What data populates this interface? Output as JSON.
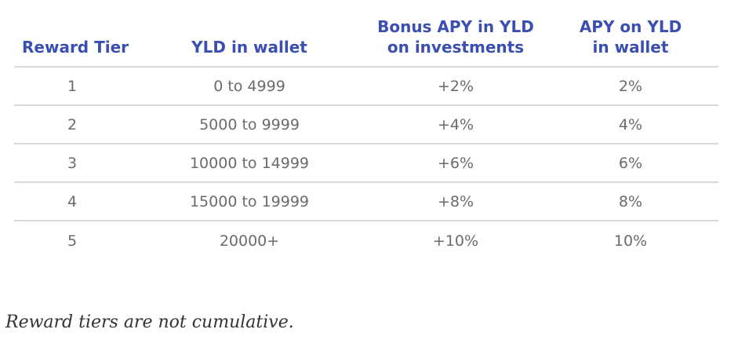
{
  "table": {
    "headers": [
      [
        "Reward Tier"
      ],
      [
        "YLD in wallet"
      ],
      [
        "Bonus APY in YLD",
        "on investments"
      ],
      [
        "APY on YLD",
        "in wallet"
      ]
    ],
    "rows": [
      [
        "1",
        "0 to 4999",
        "+2%",
        "2%"
      ],
      [
        "2",
        "5000 to 9999",
        "+4%",
        "4%"
      ],
      [
        "3",
        "10000 to 14999",
        "+6%",
        "6%"
      ],
      [
        "4",
        "15000 to 19999",
        "+8%",
        "8%"
      ],
      [
        "5",
        "20000+",
        "+10%",
        "10%"
      ]
    ]
  },
  "colors": {
    "header_text": "#3b4fb0",
    "cell_text": "#6b6b6b",
    "rule": "#d9d9d9"
  },
  "footnote": "Reward tiers are not cumulative."
}
